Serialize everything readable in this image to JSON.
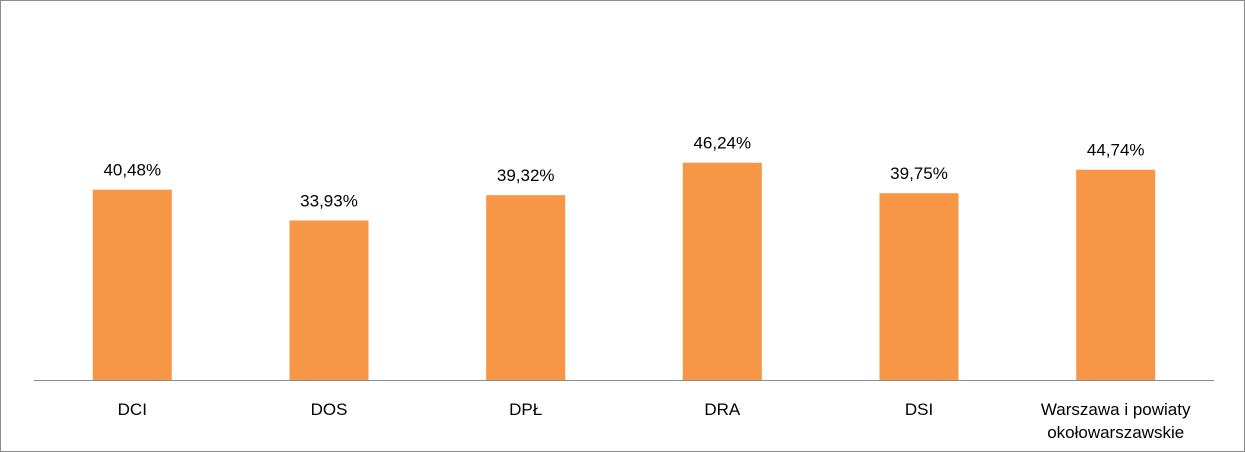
{
  "chart_data": {
    "type": "bar",
    "categories": [
      "DCI",
      "DOS",
      "DPŁ",
      "DRA",
      "DSI",
      "Warszawa i powiaty okołowarszawskie"
    ],
    "category_lines": [
      [
        "DCI"
      ],
      [
        "DOS"
      ],
      [
        "DPŁ"
      ],
      [
        "DRA"
      ],
      [
        "DSI"
      ],
      [
        "Warszawa i powiaty",
        "okołowarszawskie"
      ]
    ],
    "values": [
      40.48,
      33.93,
      39.32,
      46.24,
      39.75,
      44.74
    ],
    "data_labels": [
      "40,48%",
      "33,93%",
      "39,32%",
      "46,24%",
      "39,75%",
      "44,74%"
    ],
    "title": "",
    "xlabel": "",
    "ylabel": "",
    "ylim": [
      0,
      70
    ],
    "grid": false,
    "legend": "none",
    "bar_color": "#F79646",
    "axis_color": "#8c8c8c"
  }
}
